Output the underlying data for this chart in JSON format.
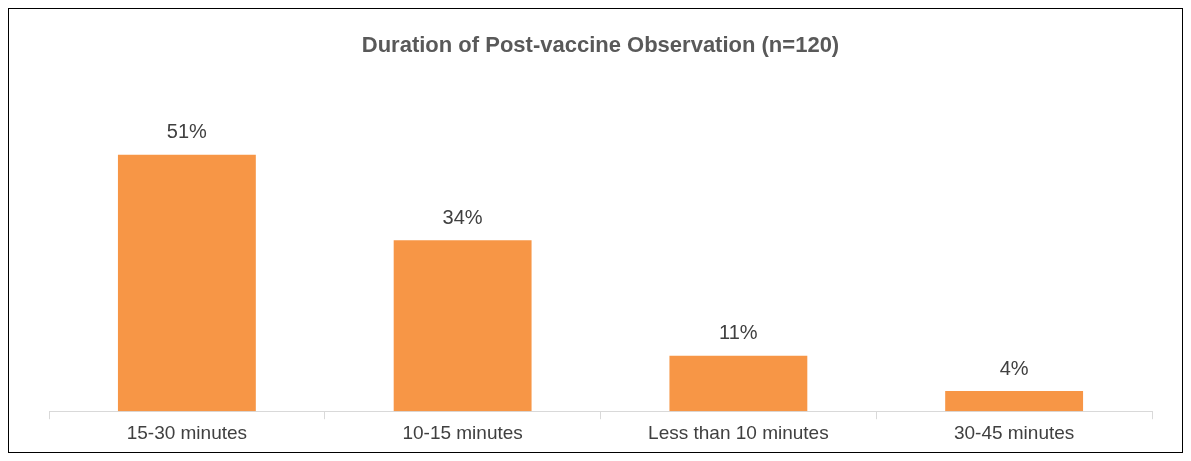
{
  "chart_data": {
    "type": "bar",
    "title": "Duration of Post-vaccine Observation (n=120)",
    "categories": [
      "15-30 minutes",
      "10-15 minutes",
      "Less than 10 minutes",
      "30-45 minutes"
    ],
    "values": [
      51,
      34,
      11,
      4
    ],
    "value_labels": [
      "51%",
      "34%",
      "11%",
      "4%"
    ],
    "color": "#f79646"
  }
}
